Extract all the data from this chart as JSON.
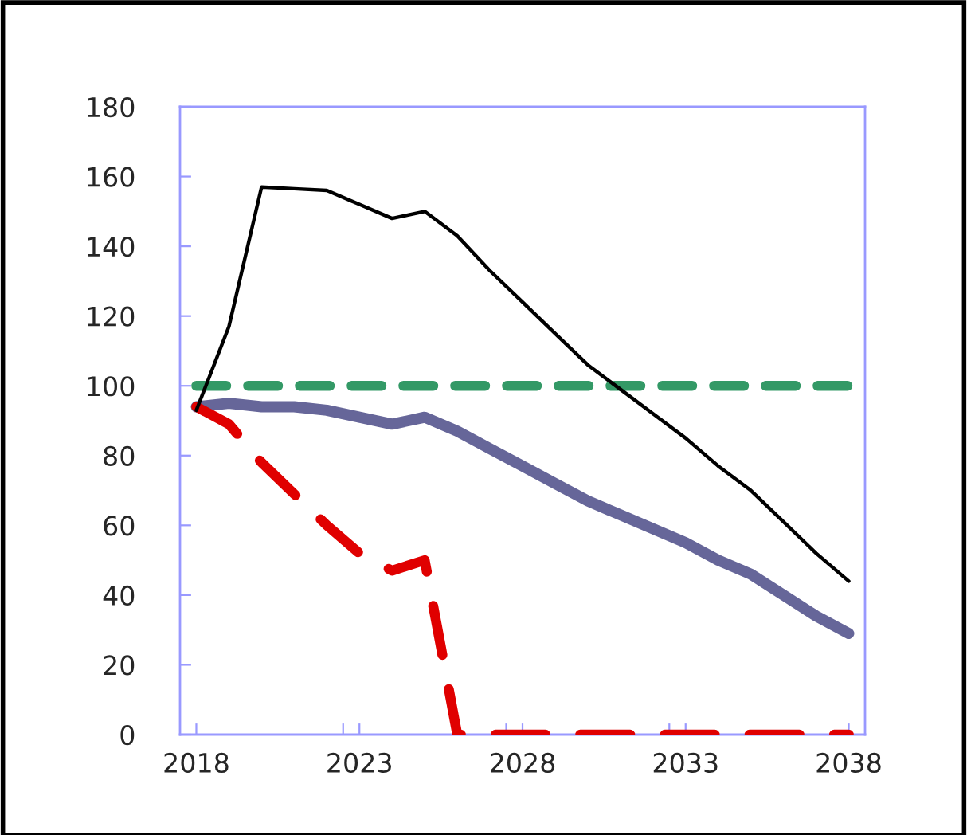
{
  "chart_data": {
    "type": "line",
    "x": [
      2018,
      2019,
      2020,
      2021,
      2022,
      2023,
      2024,
      2025,
      2026,
      2027,
      2028,
      2029,
      2030,
      2031,
      2032,
      2033,
      2034,
      2035,
      2036,
      2037,
      2038
    ],
    "series": [
      {
        "color": "#000000",
        "values": [
          93,
          117,
          157,
          156.5,
          156,
          152,
          148,
          150,
          143,
          133,
          124,
          115,
          106,
          99,
          92,
          85,
          77,
          70,
          61,
          52,
          44
        ]
      },
      {
        "color": "#339966",
        "line_style": "dashed",
        "values": [
          100,
          100,
          100,
          100,
          100,
          100,
          100,
          100,
          100,
          100,
          100,
          100,
          100,
          100,
          100,
          100,
          100,
          100,
          100,
          100,
          100
        ]
      },
      {
        "color": "#666699",
        "values": [
          94,
          95,
          94,
          94,
          93,
          91,
          89,
          91,
          87,
          82,
          77,
          72,
          67,
          63,
          59,
          55,
          50,
          46,
          40,
          34,
          29
        ]
      },
      {
        "color": "#e00000",
        "line_style": "dashed",
        "values": [
          94,
          89,
          78,
          69,
          60,
          52,
          47,
          50,
          0,
          0,
          0,
          0,
          0,
          0,
          0,
          0,
          0,
          0,
          0,
          0,
          0
        ]
      }
    ],
    "xlim": [
      2017.5,
      2038.5
    ],
    "xticks": [
      2018,
      {
        "value": 2022.5,
        "label": null
      },
      2023,
      {
        "value": 2027.5,
        "label": null
      },
      2028,
      {
        "value": 2032.5,
        "label": null
      },
      2033,
      2038
    ],
    "ylim": [
      0,
      180
    ],
    "yticks": [
      0,
      20,
      40,
      60,
      80,
      100,
      120,
      140,
      160,
      180
    ],
    "grid": false,
    "legend": false,
    "marker": "none"
  }
}
